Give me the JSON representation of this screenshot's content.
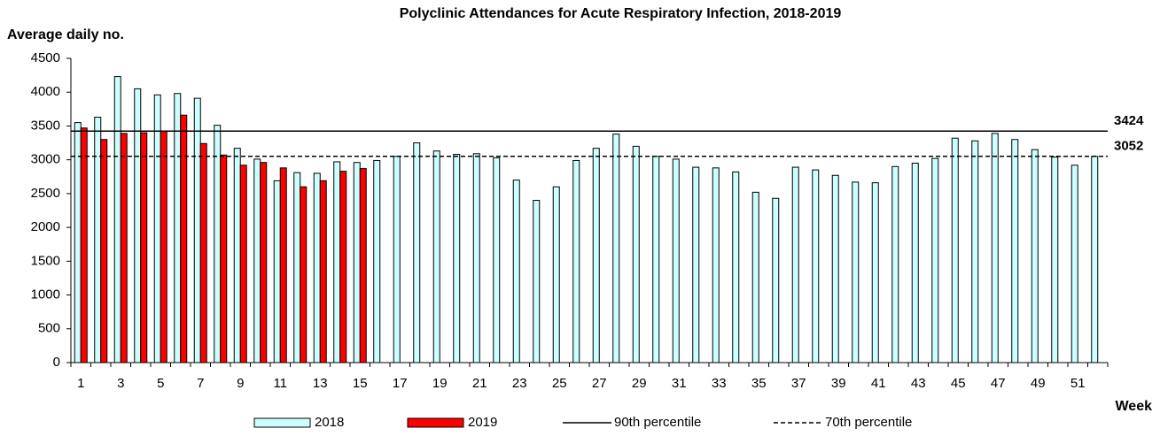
{
  "chart_data": {
    "type": "bar",
    "title": "Polyclinic Attendances for Acute Respiratory Infection, 2018-2019",
    "y_label": "Average daily no.",
    "x_label": "Week",
    "categories": [
      "1",
      null,
      "3",
      null,
      "5",
      null,
      "7",
      null,
      "9",
      null,
      "11",
      null,
      "13",
      null,
      "15",
      null,
      "17",
      null,
      "19",
      null,
      "21",
      null,
      "23",
      null,
      "25",
      null,
      "27",
      null,
      "29",
      null,
      "31",
      null,
      "33",
      null,
      "35",
      null,
      "37",
      null,
      "39",
      null,
      "41",
      null,
      "43",
      null,
      "45",
      null,
      "47",
      null,
      "49",
      null,
      "51",
      null
    ],
    "series": [
      {
        "name": "2018",
        "color": "#ccffff",
        "values": [
          3550,
          3630,
          4230,
          4050,
          3960,
          3980,
          3910,
          3510,
          3170,
          3010,
          2690,
          2810,
          2800,
          2970,
          2960,
          2990,
          3050,
          3250,
          3130,
          3080,
          3090,
          3030,
          2700,
          2400,
          2600,
          2990,
          3170,
          3380,
          3200,
          3050,
          3010,
          2890,
          2880,
          2820,
          2520,
          2430,
          2890,
          2850,
          2770,
          2670,
          2660,
          2900,
          2950,
          3020,
          3320,
          3280,
          3390,
          3300,
          3150,
          3040,
          2920,
          3050
        ]
      },
      {
        "name": "2019",
        "color": "#ff0000",
        "values": [
          3470,
          3300,
          3390,
          3400,
          3420,
          3660,
          3240,
          3070,
          2920,
          2960,
          2880,
          2600,
          2690,
          2830,
          2870,
          null,
          null,
          null,
          null,
          null,
          null,
          null,
          null,
          null,
          null,
          null,
          null,
          null,
          null,
          null,
          null,
          null,
          null,
          null,
          null,
          null,
          null,
          null,
          null,
          null,
          null,
          null,
          null,
          null,
          null,
          null,
          null,
          null,
          null,
          null,
          null,
          null
        ]
      }
    ],
    "reference_lines": [
      {
        "name": "90th percentile",
        "value": 3424,
        "style": "solid",
        "color": "#000000"
      },
      {
        "name": "70th percentile",
        "value": 3052,
        "style": "dashed",
        "color": "#000000"
      }
    ],
    "ylim": [
      0,
      4500
    ],
    "yticks": [
      0,
      500,
      1000,
      1500,
      2000,
      2500,
      3000,
      3500,
      4000,
      4500
    ],
    "grid": false
  }
}
